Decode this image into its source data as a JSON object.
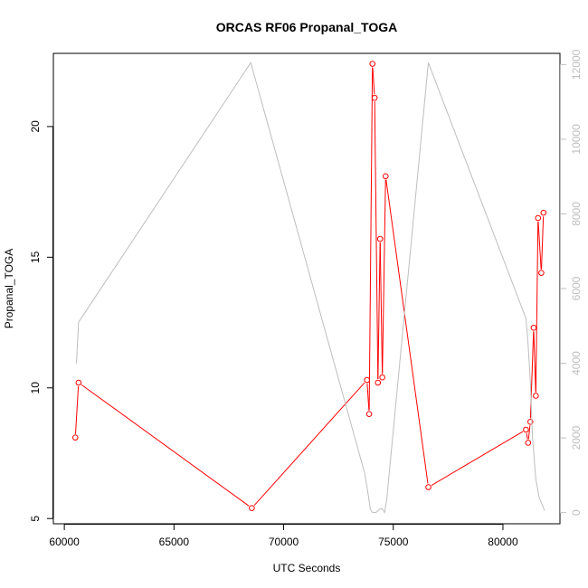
{
  "chart_data": {
    "type": "line",
    "title": "ORCAS RF06 Propanal_TOGA",
    "xlabel": "UTC Seconds",
    "ylabel": "Propanal_TOGA",
    "xlim": [
      59500,
      82600
    ],
    "ylim": [
      4.8,
      22.8
    ],
    "y2lim": [
      -300,
      12300
    ],
    "xticks": [
      60000,
      65000,
      70000,
      75000,
      80000
    ],
    "yticks": [
      5,
      10,
      15,
      20
    ],
    "y2ticks": [
      0,
      2000,
      4000,
      6000,
      8000,
      10000,
      12000
    ],
    "colors": {
      "series": "#ff0000",
      "secondary": "#bebebe"
    },
    "series": [
      {
        "axis": "left",
        "markers": "open-circle",
        "color": "#ff0000",
        "x": [
          60500,
          60650,
          68550,
          73800,
          73900,
          74050,
          74150,
          74300,
          74400,
          74500,
          74650,
          76600,
          81050,
          81150,
          81250,
          81400,
          81500,
          81600,
          81750,
          81850
        ],
        "y": [
          8.1,
          10.2,
          5.4,
          10.3,
          9.0,
          22.4,
          21.1,
          10.2,
          15.7,
          10.4,
          18.1,
          6.2,
          8.4,
          7.9,
          8.7,
          12.3,
          9.7,
          16.5,
          14.4,
          16.7
        ]
      },
      {
        "axis": "right",
        "color": "#bebebe",
        "x": [
          60550,
          60650,
          68500,
          73700,
          73850,
          73950,
          74050,
          74200,
          74400,
          74500,
          74600,
          74700,
          76600,
          81050,
          81150,
          81250,
          81350,
          81500,
          81650,
          81800,
          81900
        ],
        "y": [
          4000,
          5100,
          12050,
          1050,
          500,
          100,
          0,
          0,
          100,
          100,
          0,
          350,
          12050,
          5200,
          4500,
          3500,
          2000,
          900,
          400,
          200,
          50
        ]
      }
    ]
  }
}
